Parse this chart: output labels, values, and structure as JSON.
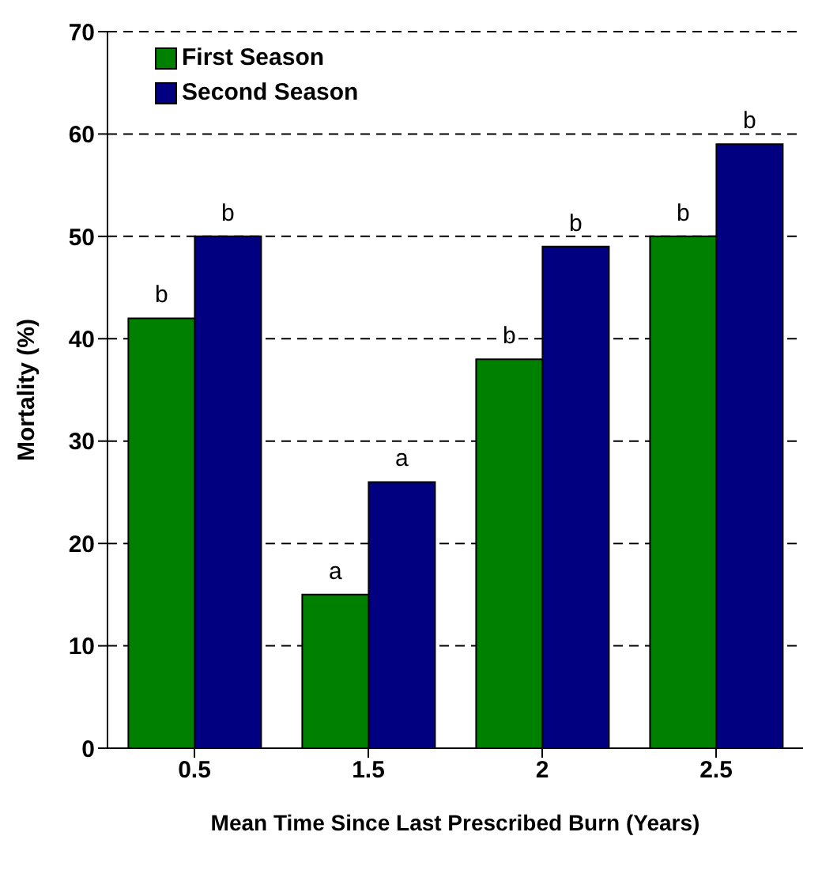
{
  "chart_data": {
    "type": "bar",
    "xlabel": "Mean Time Since Last Prescribed Burn (Years)",
    "ylabel": "Mortality (%)",
    "categories": [
      "0.5",
      "1.5",
      "2",
      "2.5"
    ],
    "series": [
      {
        "name": "First Season",
        "color": "#008000",
        "values": [
          42,
          15,
          38,
          50
        ]
      },
      {
        "name": "Second Season",
        "color": "#000080",
        "values": [
          50,
          26,
          49,
          59
        ]
      }
    ],
    "ylim": [
      0,
      70
    ],
    "yticks": [
      0,
      10,
      20,
      30,
      40,
      50,
      60,
      70
    ],
    "grid": "y",
    "legend": "top left",
    "annotations": [
      {
        "text": "b",
        "x": "0.5",
        "y": 42
      },
      {
        "text": "b",
        "x": "0.5",
        "y": 50
      },
      {
        "text": "a",
        "x": "1.5",
        "y": 15
      },
      {
        "text": "a",
        "x": "1.5",
        "y": 26
      },
      {
        "text": "b",
        "x": "2",
        "y": 38
      },
      {
        "text": "b",
        "x": "2",
        "y": 49
      },
      {
        "text": "b",
        "x": "2.5",
        "y": 50
      },
      {
        "text": "b",
        "x": "2.5",
        "y": 59
      }
    ]
  }
}
